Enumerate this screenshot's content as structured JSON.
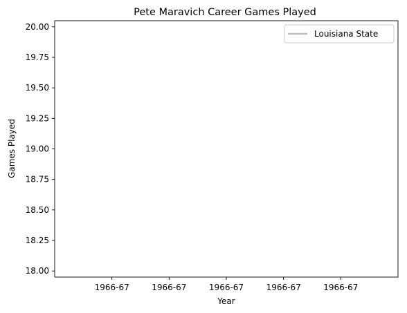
{
  "chart_data": {
    "type": "line",
    "title": "Pete Maravich Career Games Played",
    "xlabel": "Year",
    "ylabel": "Games Played",
    "x_tick_labels": [
      "1966-67",
      "1966-67",
      "1966-67",
      "1966-67",
      "1966-67"
    ],
    "y_ticks": [
      18.0,
      18.25,
      18.5,
      18.75,
      19.0,
      19.25,
      19.5,
      19.75,
      20.0
    ],
    "y_tick_labels": [
      "18.00",
      "18.25",
      "18.50",
      "18.75",
      "19.00",
      "19.25",
      "19.50",
      "19.75",
      "20.00"
    ],
    "ylim": [
      17.95,
      20.05
    ],
    "grid": false,
    "legend_position": "upper right",
    "series": [
      {
        "name": "Louisiana State",
        "color": "#c0c0c0",
        "x": [],
        "values": []
      }
    ]
  }
}
